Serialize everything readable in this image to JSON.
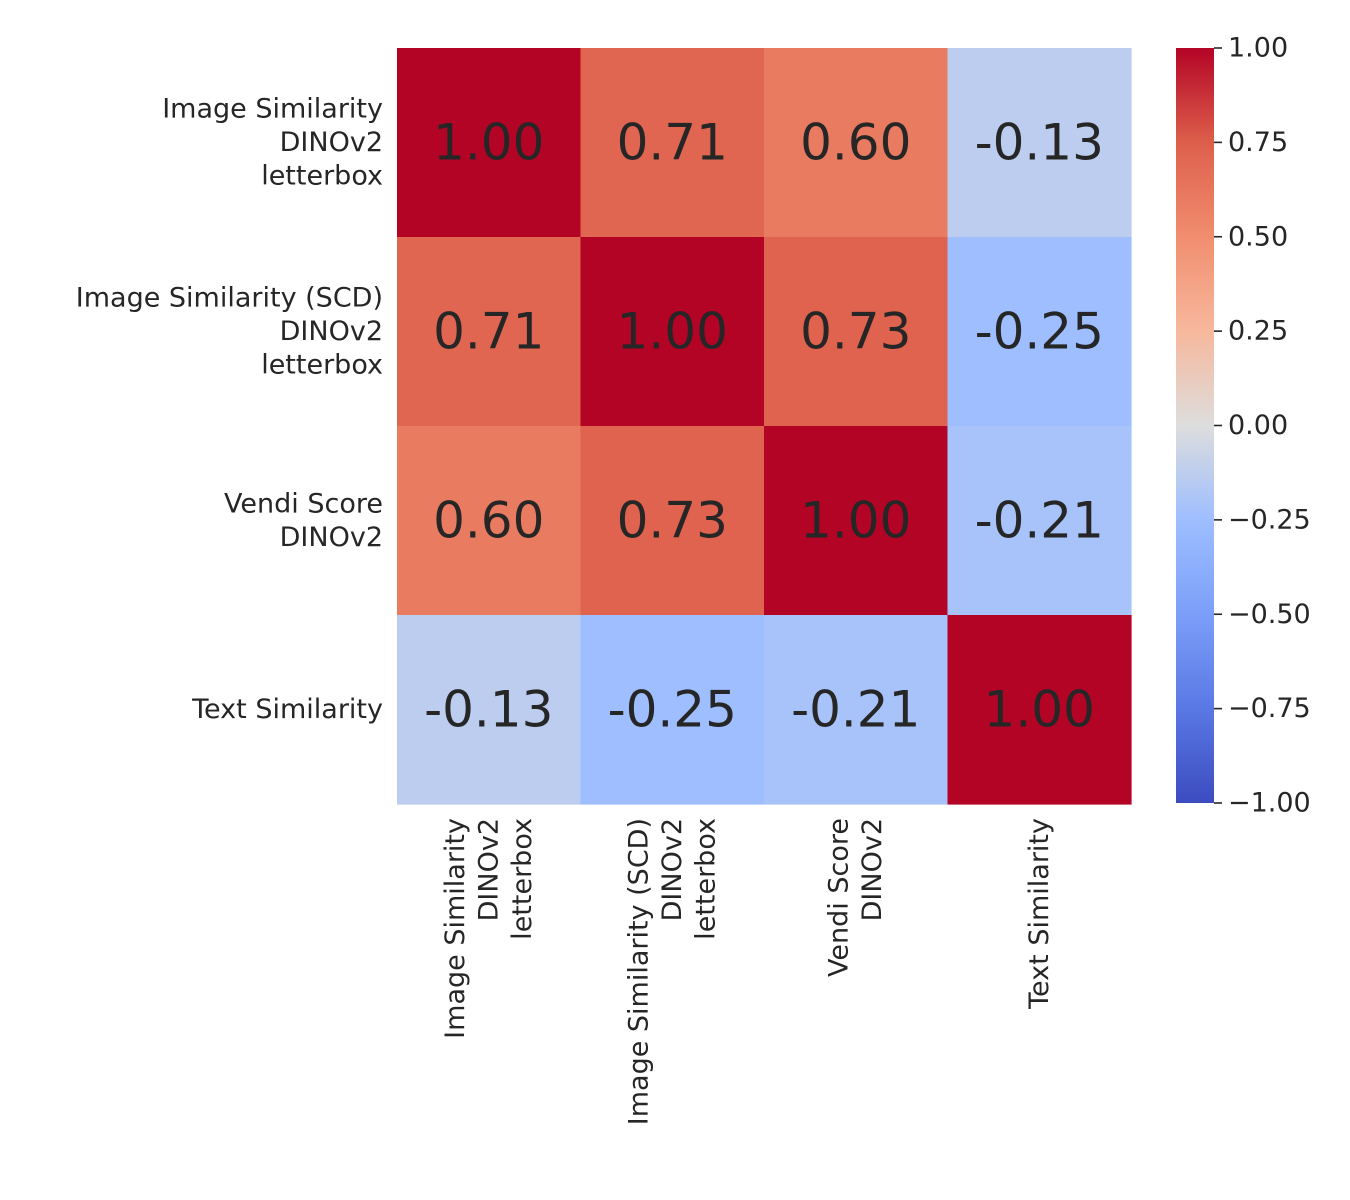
{
  "chart_data": {
    "type": "heatmap",
    "title": "",
    "xlabel": "",
    "ylabel": "",
    "labels": [
      [
        "Image Similarity",
        "DINOv2",
        "letterbox"
      ],
      [
        "Image Similarity (SCD)",
        "DINOv2",
        "letterbox"
      ],
      [
        "Vendi Score",
        "DINOv2"
      ],
      [
        "Text Similarity"
      ]
    ],
    "values": [
      [
        1.0,
        0.71,
        0.6,
        -0.13
      ],
      [
        0.71,
        1.0,
        0.73,
        -0.25
      ],
      [
        0.6,
        0.73,
        1.0,
        -0.21
      ],
      [
        -0.13,
        -0.25,
        -0.21,
        1.0
      ]
    ],
    "value_labels": [
      [
        "1.00",
        "0.71",
        "0.60",
        "-0.13"
      ],
      [
        "0.71",
        "1.00",
        "0.73",
        "-0.25"
      ],
      [
        "0.60",
        "0.73",
        "1.00",
        "-0.21"
      ],
      [
        "-0.13",
        "-0.25",
        "-0.21",
        "1.00"
      ]
    ],
    "colormap": "coolwarm",
    "vmin": -1.0,
    "vmax": 1.0,
    "colorbar": {
      "ticks": [
        1.0,
        0.75,
        0.5,
        0.25,
        0.0,
        -0.25,
        -0.5,
        -0.75,
        -1.0
      ],
      "tick_labels": [
        "1.00",
        "0.75",
        "0.50",
        "0.25",
        "0.00",
        "−0.25",
        "−0.50",
        "−0.75",
        "−1.00"
      ]
    },
    "colors": {
      "cold_end": "#3b4cc0",
      "neutral": "#dddddd",
      "hot_end": "#b40426",
      "light_text": "#ffffff",
      "dark_text": "#262626"
    }
  }
}
